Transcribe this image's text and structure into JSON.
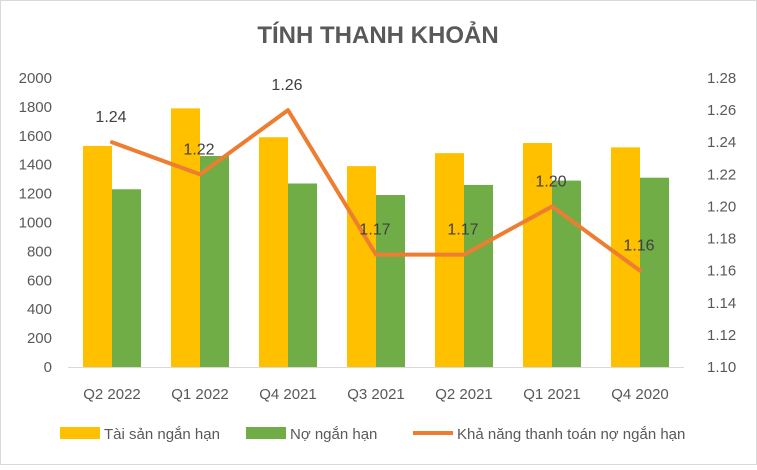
{
  "chart_data": {
    "type": "bar",
    "title": "TÍNH THANH KHOẢN",
    "categories": [
      "Q2 2022",
      "Q1 2022",
      "Q4 2021",
      "Q3 2021",
      "Q2 2021",
      "Q1 2021",
      "Q4 2020"
    ],
    "series": [
      {
        "name": "Tài sản ngắn hạn",
        "type": "bar",
        "axis": "left",
        "color": "#FFC000",
        "values": [
          1530,
          1790,
          1590,
          1390,
          1480,
          1550,
          1520
        ]
      },
      {
        "name": "Nợ ngắn hạn",
        "type": "bar",
        "axis": "left",
        "color": "#70AD47",
        "values": [
          1230,
          1460,
          1270,
          1190,
          1260,
          1290,
          1310
        ]
      },
      {
        "name": "Khả năng thanh toán nợ ngắn hạn",
        "type": "line",
        "axis": "right",
        "color": "#ED7D31",
        "values": [
          1.24,
          1.22,
          1.26,
          1.17,
          1.17,
          1.2,
          1.16
        ],
        "labels": [
          "1.24",
          "1.22",
          "1.26",
          "1.17",
          "1.17",
          "1.20",
          "1.16"
        ]
      }
    ],
    "y_left": {
      "min": 0,
      "max": 2000,
      "step": 200,
      "ticks": [
        "0",
        "200",
        "400",
        "600",
        "800",
        "1000",
        "1200",
        "1400",
        "1600",
        "1800",
        "2000"
      ]
    },
    "y_right": {
      "min": 1.1,
      "max": 1.28,
      "step": 0.02,
      "ticks": [
        "1.10",
        "1.12",
        "1.14",
        "1.16",
        "1.18",
        "1.20",
        "1.22",
        "1.24",
        "1.26",
        "1.28"
      ]
    },
    "grid": false,
    "legend_position": "bottom"
  }
}
